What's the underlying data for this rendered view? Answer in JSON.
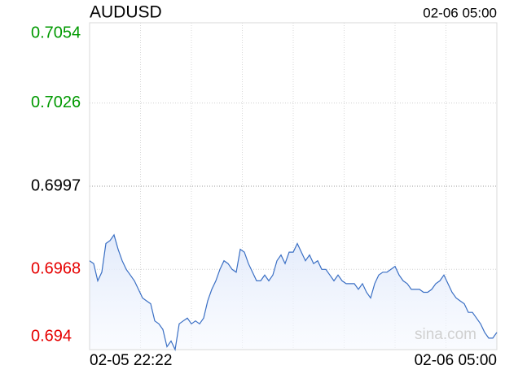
{
  "chart_data": {
    "type": "line",
    "title": "AUDUSD",
    "timestamp": "02-06 05:00",
    "x_labels": [
      "02-05 22:22",
      "02-06 05:00"
    ],
    "watermark": "sina.com",
    "ylim": [
      0.694,
      0.7054
    ],
    "yticks": [
      0.7054,
      0.7026,
      0.6997,
      0.6968,
      0.694
    ],
    "up_color": "#009900",
    "down_color": "#e60000",
    "grid": true,
    "series": [
      {
        "color": "#3a6fc4",
        "values": [
          0.6971,
          0.697,
          0.6964,
          0.6967,
          0.6977,
          0.6978,
          0.698,
          0.6975,
          0.6971,
          0.6968,
          0.6966,
          0.6964,
          0.6961,
          0.6958,
          0.6957,
          0.6956,
          0.695,
          0.6949,
          0.6947,
          0.6941,
          0.6943,
          0.694,
          0.6949,
          0.695,
          0.6951,
          0.6949,
          0.695,
          0.6949,
          0.6951,
          0.6957,
          0.6961,
          0.6964,
          0.6968,
          0.6971,
          0.697,
          0.6968,
          0.6967,
          0.6975,
          0.6974,
          0.697,
          0.6967,
          0.6964,
          0.6964,
          0.6966,
          0.6964,
          0.6966,
          0.6971,
          0.6973,
          0.697,
          0.6974,
          0.6974,
          0.6977,
          0.6974,
          0.6971,
          0.6973,
          0.697,
          0.6971,
          0.6968,
          0.6968,
          0.6966,
          0.6964,
          0.6966,
          0.6964,
          0.6963,
          0.6963,
          0.6963,
          0.6961,
          0.6963,
          0.696,
          0.6958,
          0.6963,
          0.6966,
          0.6967,
          0.6967,
          0.6968,
          0.6969,
          0.6966,
          0.6964,
          0.6963,
          0.6961,
          0.6961,
          0.6961,
          0.696,
          0.696,
          0.6961,
          0.6963,
          0.6964,
          0.6966,
          0.6963,
          0.696,
          0.6958,
          0.6957,
          0.6956,
          0.6953,
          0.6953,
          0.6951,
          0.6949,
          0.6946,
          0.6944,
          0.6944,
          0.6946
        ]
      }
    ]
  }
}
